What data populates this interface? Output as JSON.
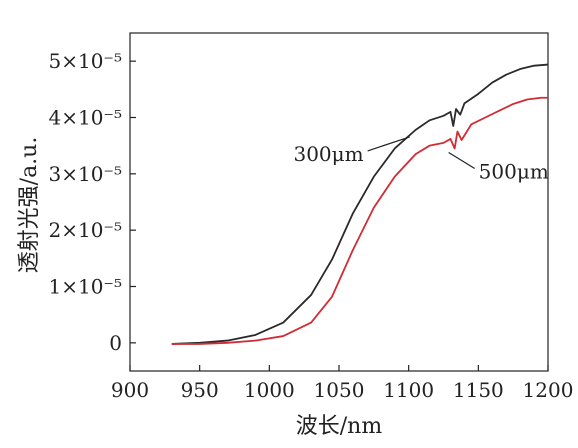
{
  "chart_data": {
    "type": "line",
    "title": "",
    "xlabel": "波长/nm",
    "ylabel": "透射光强/a.u.",
    "xlim": [
      900,
      1200
    ],
    "ylim": [
      -0.5,
      5.5
    ],
    "x_ticks": [
      "900",
      "950",
      "1000",
      "1050",
      "1100",
      "1150",
      "1200"
    ],
    "x_tick_values": [
      900,
      950,
      1000,
      1050,
      1100,
      1150,
      1200
    ],
    "y_ticks": [
      {
        "value": 0,
        "label": "0"
      },
      {
        "value": 1,
        "label": "1×10⁻⁵"
      },
      {
        "value": 2,
        "label": "2×10⁻⁵"
      },
      {
        "value": 3,
        "label": "3×10⁻⁵"
      },
      {
        "value": 4,
        "label": "4×10⁻⁵"
      },
      {
        "value": 5,
        "label": "5×10⁻⁵"
      }
    ],
    "series": [
      {
        "name": "300μm",
        "color": "#2a2a2a",
        "points": [
          [
            930,
            -0.02
          ],
          [
            950,
            0.0
          ],
          [
            970,
            0.04
          ],
          [
            990,
            0.14
          ],
          [
            1010,
            0.36
          ],
          [
            1030,
            0.85
          ],
          [
            1045,
            1.48
          ],
          [
            1060,
            2.3
          ],
          [
            1075,
            2.95
          ],
          [
            1090,
            3.45
          ],
          [
            1105,
            3.78
          ],
          [
            1115,
            3.95
          ],
          [
            1125,
            4.03
          ],
          [
            1130,
            4.1
          ],
          [
            1132,
            3.85
          ],
          [
            1134,
            4.15
          ],
          [
            1137,
            4.05
          ],
          [
            1140,
            4.25
          ],
          [
            1150,
            4.42
          ],
          [
            1160,
            4.62
          ],
          [
            1170,
            4.76
          ],
          [
            1180,
            4.86
          ],
          [
            1190,
            4.92
          ],
          [
            1200,
            4.94
          ]
        ]
      },
      {
        "name": "500μm",
        "color": "#d12b35",
        "points": [
          [
            930,
            -0.02
          ],
          [
            950,
            -0.02
          ],
          [
            970,
            0.0
          ],
          [
            990,
            0.04
          ],
          [
            1010,
            0.12
          ],
          [
            1030,
            0.36
          ],
          [
            1045,
            0.82
          ],
          [
            1060,
            1.65
          ],
          [
            1075,
            2.4
          ],
          [
            1090,
            2.95
          ],
          [
            1105,
            3.35
          ],
          [
            1115,
            3.5
          ],
          [
            1125,
            3.55
          ],
          [
            1130,
            3.62
          ],
          [
            1133,
            3.45
          ],
          [
            1135,
            3.75
          ],
          [
            1138,
            3.6
          ],
          [
            1145,
            3.88
          ],
          [
            1155,
            4.0
          ],
          [
            1165,
            4.12
          ],
          [
            1175,
            4.24
          ],
          [
            1185,
            4.32
          ],
          [
            1195,
            4.35
          ],
          [
            1200,
            4.35
          ]
        ]
      }
    ],
    "annotations": [
      {
        "text": "300μm",
        "series": "300μm",
        "at_x": 1105
      },
      {
        "text": "500μm",
        "series": "500μm",
        "at_x": 1132
      }
    ],
    "grid": false,
    "legend": "none"
  }
}
